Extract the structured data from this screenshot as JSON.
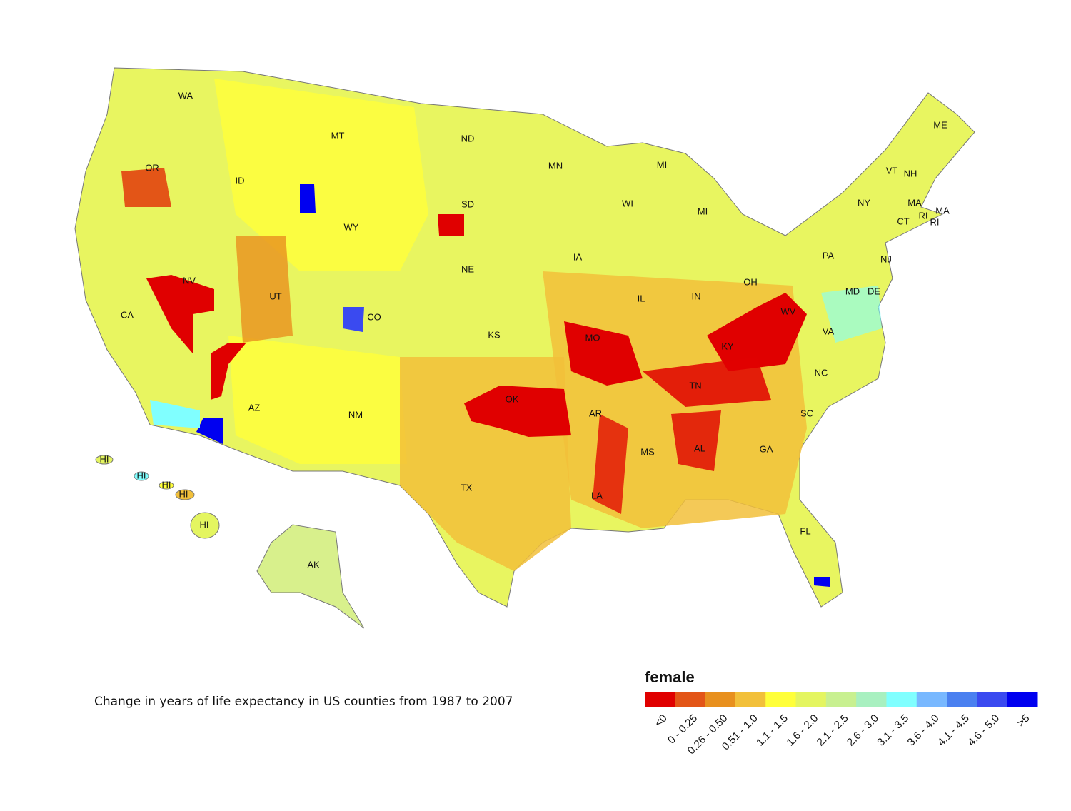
{
  "map": {
    "state_labels": [
      "WA",
      "OR",
      "CA",
      "NV",
      "ID",
      "MT",
      "WY",
      "UT",
      "AZ",
      "CO",
      "NM",
      "ND",
      "SD",
      "NE",
      "KS",
      "OK",
      "TX",
      "MN",
      "IA",
      "MO",
      "AR",
      "LA",
      "WI",
      "IL",
      "MI",
      "MI",
      "IN",
      "OH",
      "KY",
      "TN",
      "MS",
      "AL",
      "GA",
      "FL",
      "SC",
      "NC",
      "VA",
      "WV",
      "PA",
      "NY",
      "VT",
      "NH",
      "ME",
      "MA",
      "MA",
      "RI",
      "RI",
      "CT",
      "NJ",
      "MD",
      "DE",
      "HI",
      "HI",
      "HI",
      "HI",
      "HI",
      "AK"
    ],
    "caption": "Change in years of life expectancy in US counties from 1987 to 2007"
  },
  "legend": {
    "title": "female",
    "items": [
      {
        "label": "<0",
        "color": "#e00000"
      },
      {
        "label": "0 - 0.25",
        "color": "#e35517"
      },
      {
        "label": "0.26 - 0.50",
        "color": "#e8901e"
      },
      {
        "label": "0.51 - 1.0",
        "color": "#f2c03a"
      },
      {
        "label": "1.1 - 1.5",
        "color": "#ffff3a"
      },
      {
        "label": "1.6 - 2.0",
        "color": "#e4f560"
      },
      {
        "label": "2.1 - 2.5",
        "color": "#c8f090"
      },
      {
        "label": "2.6 - 3.0",
        "color": "#a8f0c0"
      },
      {
        "label": "3.1 - 3.5",
        "color": "#80ffff"
      },
      {
        "label": "3.6 - 4.0",
        "color": "#78b8ff"
      },
      {
        "label": "4.1 - 4.5",
        "color": "#4a80f0"
      },
      {
        "label": "4.6 - 5.0",
        "color": "#3a4af0"
      },
      {
        "label": ">5",
        "color": "#0000f0"
      }
    ]
  }
}
